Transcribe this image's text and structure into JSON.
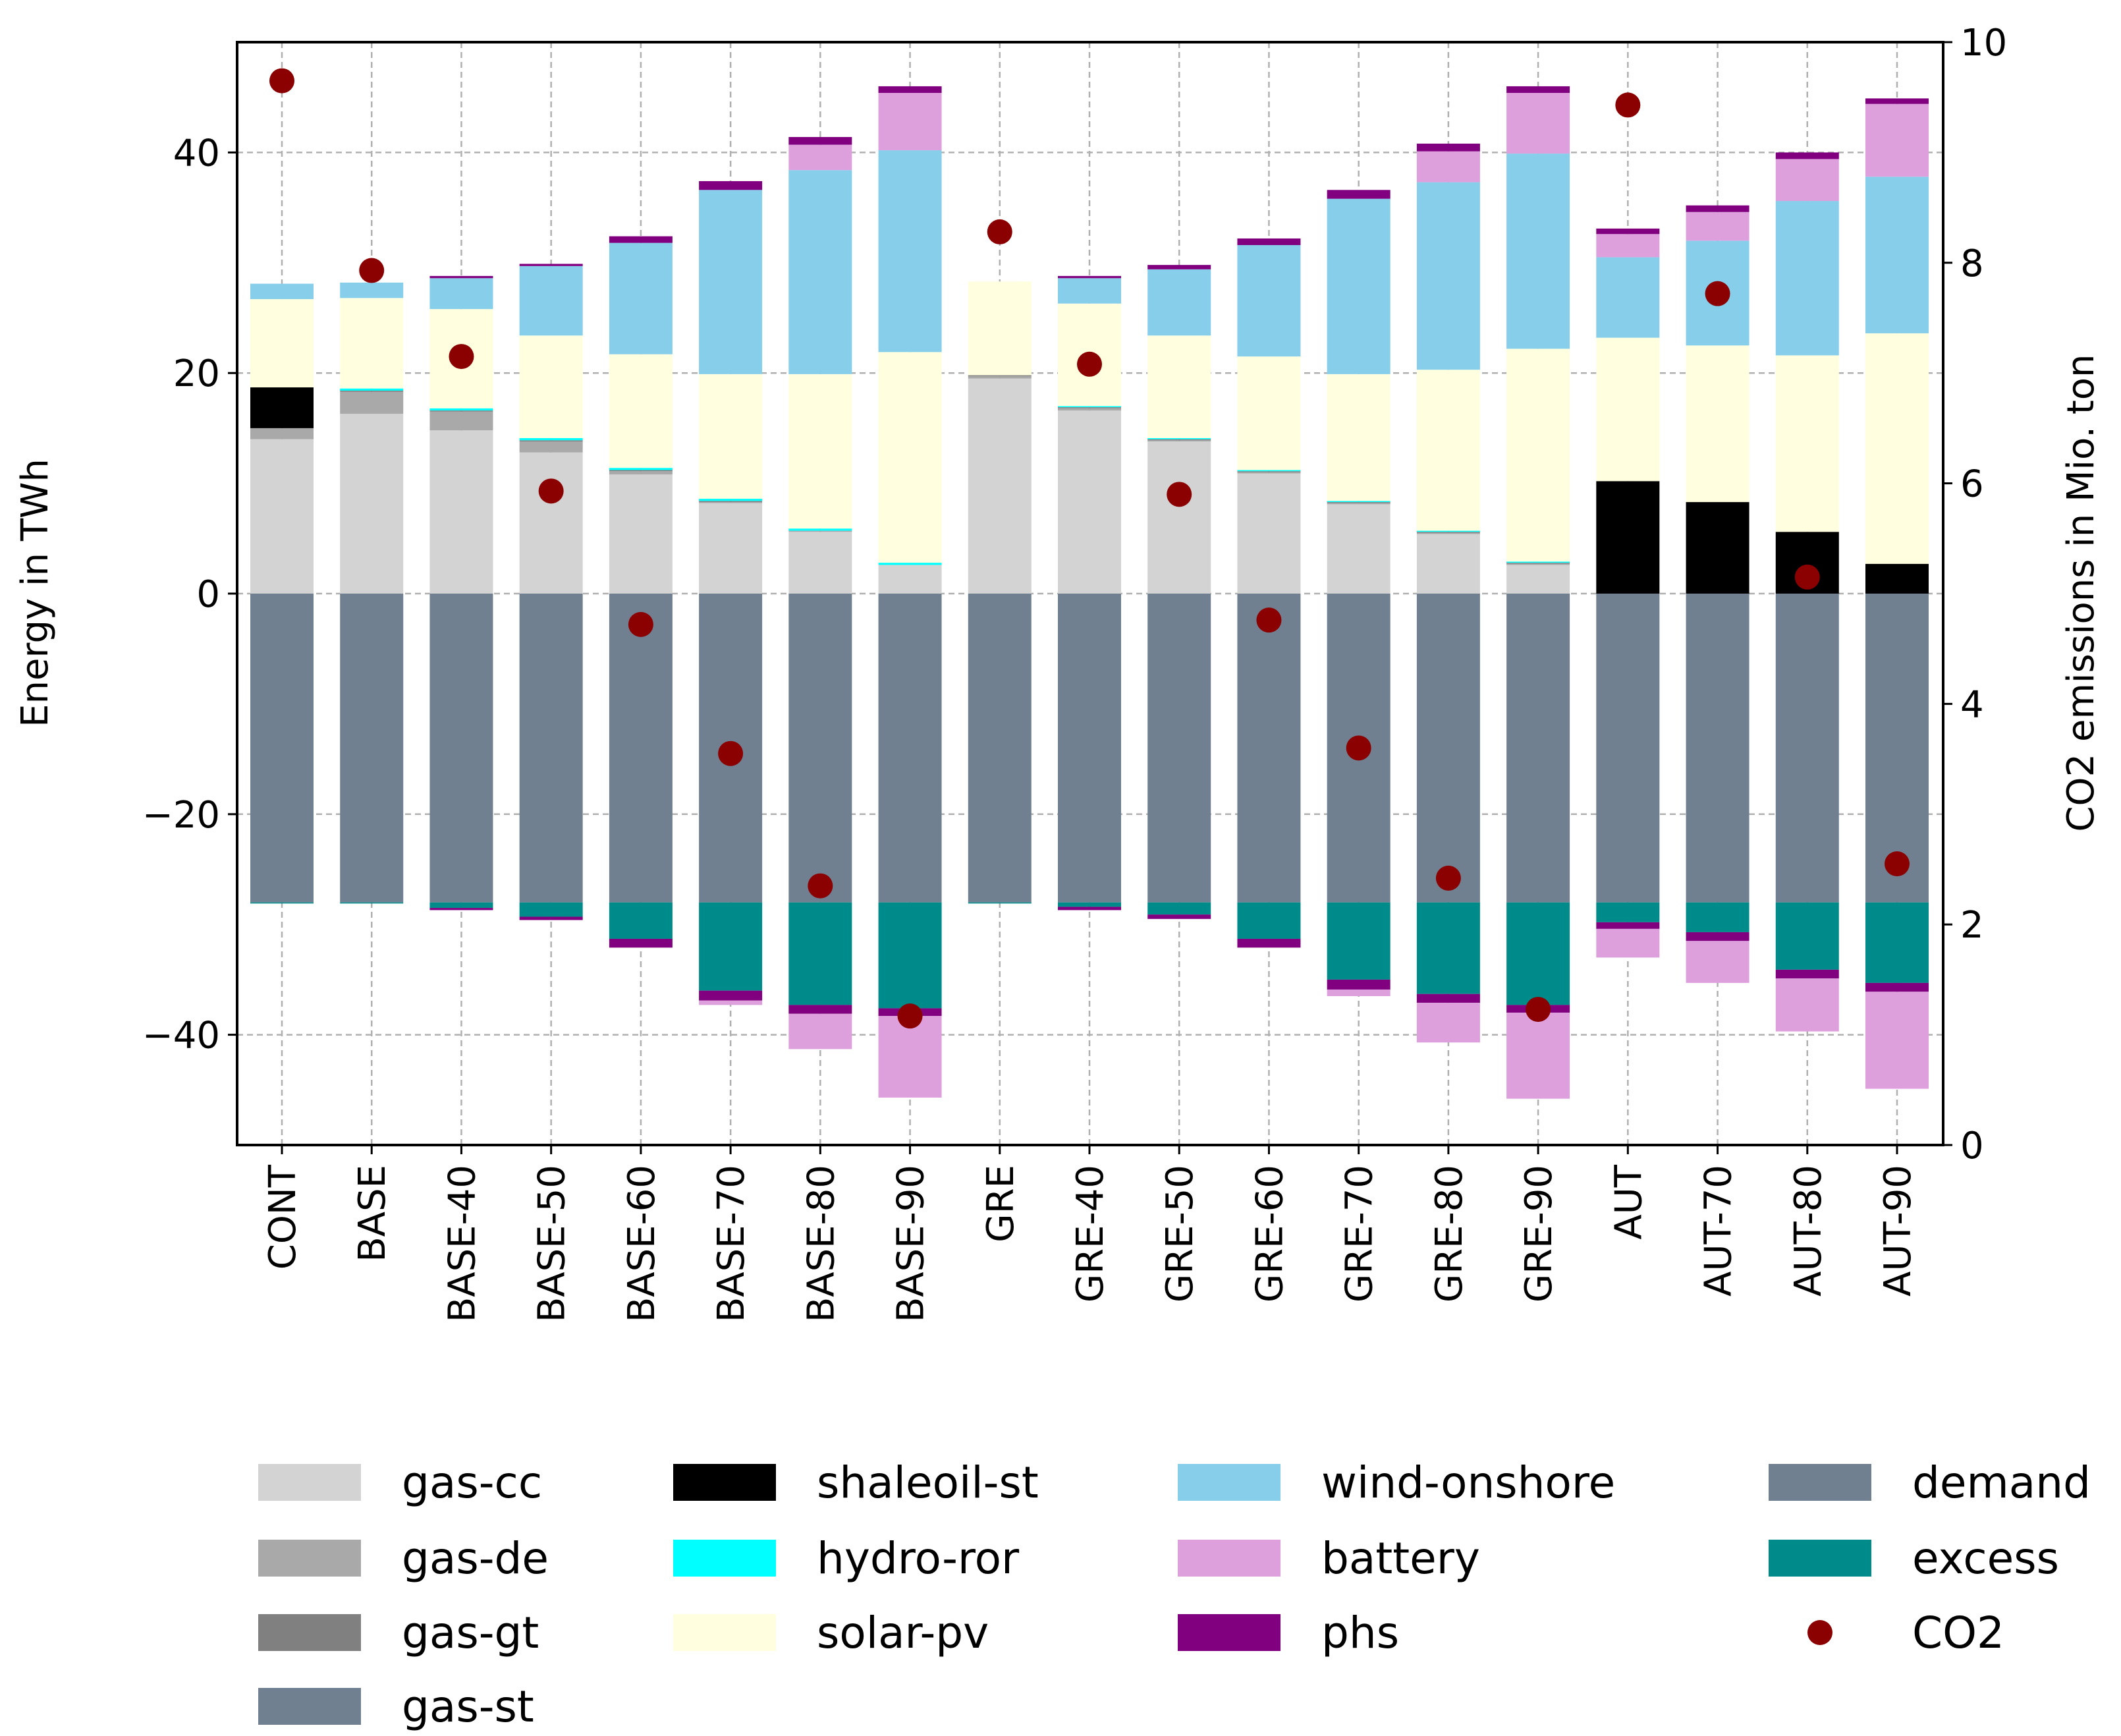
{
  "chart_data": {
    "type": "bar",
    "stacked": true,
    "title": "",
    "xlabel": "",
    "ylabel": "Energy in TWh",
    "ylabel_right": "CO2 emissions in Mio. ton",
    "ylim": [
      -50,
      50
    ],
    "ylim_right": [
      0,
      10
    ],
    "yticks": [
      -40,
      -20,
      0,
      20,
      40
    ],
    "yticks_right": [
      0,
      2,
      4,
      6,
      8,
      10
    ],
    "tick_labels_left": [
      "−40",
      "−20",
      "0",
      "20",
      "40"
    ],
    "tick_labels_right": [
      "0",
      "2",
      "4",
      "6",
      "8",
      "10"
    ],
    "grid": true,
    "legend_position": "below",
    "categories": [
      "CONT",
      "BASE",
      "BASE-40",
      "BASE-50",
      "BASE-60",
      "BASE-70",
      "BASE-80",
      "BASE-90",
      "GRE",
      "GRE-40",
      "GRE-50",
      "GRE-60",
      "GRE-70",
      "GRE-80",
      "GRE-90",
      "AUT",
      "AUT-70",
      "AUT-80",
      "AUT-90"
    ],
    "positive_series": [
      {
        "name": "gas-cc",
        "color": "#d3d3d3",
        "values": [
          14.0,
          16.3,
          14.8,
          12.8,
          10.8,
          8.2,
          5.6,
          2.6,
          19.5,
          16.6,
          13.8,
          10.9,
          8.1,
          5.4,
          2.6,
          0,
          0,
          0,
          0
        ]
      },
      {
        "name": "gas-de",
        "color": "#a9a9a9",
        "values": [
          1.0,
          2.0,
          1.7,
          1.0,
          0.3,
          0.1,
          0.1,
          0,
          0.2,
          0.2,
          0.1,
          0.1,
          0.1,
          0.1,
          0.1,
          0,
          0,
          0,
          0
        ]
      },
      {
        "name": "gas-gt",
        "color": "#808080",
        "values": [
          0,
          0.1,
          0.1,
          0.1,
          0.1,
          0.1,
          0,
          0,
          0.1,
          0.1,
          0.1,
          0.1,
          0.1,
          0.1,
          0.1,
          0,
          0,
          0,
          0
        ]
      },
      {
        "name": "gas-st",
        "color": "#708090",
        "values": [
          0,
          0,
          0,
          0,
          0,
          0,
          0,
          0,
          0,
          0,
          0,
          0,
          0,
          0,
          0,
          0,
          0,
          0,
          0
        ]
      },
      {
        "name": "shaleoil-st",
        "color": "#000000",
        "values": [
          3.7,
          0,
          0,
          0,
          0,
          0,
          0,
          0,
          0,
          0,
          0,
          0,
          0,
          0,
          0,
          10.2,
          8.3,
          5.6,
          2.7
        ]
      },
      {
        "name": "hydro-ror",
        "color": "#00ffff",
        "values": [
          0,
          0.2,
          0.2,
          0.2,
          0.2,
          0.2,
          0.2,
          0.2,
          0,
          0.1,
          0.1,
          0.1,
          0.1,
          0.1,
          0.1,
          0,
          0,
          0,
          0
        ]
      },
      {
        "name": "solar-pv",
        "color": "#ffffe0",
        "values": [
          8.0,
          8.2,
          9.0,
          9.3,
          10.3,
          11.3,
          14.0,
          19.1,
          8.5,
          9.3,
          9.3,
          10.3,
          11.5,
          14.6,
          19.3,
          13.0,
          14.2,
          16.0,
          20.9
        ]
      },
      {
        "name": "wind-onshore",
        "color": "#87ceeb",
        "values": [
          1.4,
          1.4,
          2.8,
          6.3,
          10.1,
          16.7,
          18.5,
          18.3,
          0,
          2.3,
          6.0,
          10.1,
          15.9,
          17.0,
          17.7,
          7.3,
          9.5,
          14.0,
          14.2
        ]
      },
      {
        "name": "battery",
        "color": "#dda0dd",
        "values": [
          0,
          0,
          0,
          0,
          0,
          0,
          2.3,
          5.2,
          0,
          0,
          0,
          0,
          0,
          2.8,
          5.5,
          2.1,
          2.6,
          3.8,
          6.6
        ]
      },
      {
        "name": "phs",
        "color": "#800080",
        "values": [
          0,
          0,
          0.2,
          0.2,
          0.6,
          0.8,
          0.7,
          0.6,
          0,
          0.2,
          0.4,
          0.6,
          0.8,
          0.7,
          0.6,
          0.5,
          0.6,
          0.6,
          0.5
        ]
      }
    ],
    "negative_series": [
      {
        "name": "demand",
        "color": "#708090",
        "values": [
          -28.0,
          -28.0,
          -28.0,
          -28.0,
          -28.0,
          -28.0,
          -28.0,
          -28.0,
          -28.0,
          -28.0,
          -28.0,
          -28.0,
          -28.0,
          -28.0,
          -28.0,
          -28.0,
          -28.0,
          -28.0,
          -28.0
        ]
      },
      {
        "name": "excess",
        "color": "#008b8b",
        "values": [
          -0.1,
          -0.1,
          -0.5,
          -1.3,
          -3.3,
          -8.0,
          -9.3,
          -9.6,
          -0.1,
          -0.4,
          -1.1,
          -3.3,
          -7.0,
          -8.3,
          -9.3,
          -1.8,
          -2.7,
          -6.1,
          -7.3
        ]
      },
      {
        "name": "phs",
        "color": "#800080",
        "values": [
          0,
          0,
          -0.2,
          -0.3,
          -0.8,
          -0.9,
          -0.8,
          -0.7,
          0,
          -0.3,
          -0.4,
          -0.8,
          -0.9,
          -0.8,
          -0.7,
          -0.6,
          -0.8,
          -0.8,
          -0.8
        ]
      },
      {
        "name": "battery",
        "color": "#dda0dd",
        "values": [
          0,
          0,
          0,
          0,
          0,
          -0.4,
          -3.2,
          -7.4,
          0,
          0,
          0,
          0,
          -0.6,
          -3.6,
          -7.8,
          -2.6,
          -3.8,
          -4.8,
          -8.8
        ]
      }
    ],
    "scatter_series": {
      "name": "CO2",
      "color": "#8b0000",
      "axis": "right",
      "values": [
        9.65,
        7.93,
        7.15,
        5.93,
        4.72,
        3.55,
        2.35,
        1.17,
        8.28,
        7.08,
        5.9,
        4.76,
        3.6,
        2.42,
        1.23,
        9.43,
        7.72,
        5.15,
        2.55
      ]
    },
    "legend": [
      [
        "gas-cc",
        "gas-de",
        "gas-gt",
        "gas-st"
      ],
      [
        "shaleoil-st",
        "hydro-ror",
        "solar-pv"
      ],
      [
        "wind-onshore",
        "battery",
        "phs"
      ],
      [
        "demand",
        "excess",
        "CO2"
      ]
    ],
    "legend_colors": {
      "gas-cc": "#d3d3d3",
      "gas-de": "#a9a9a9",
      "gas-gt": "#808080",
      "gas-st": "#708090",
      "shaleoil-st": "#000000",
      "hydro-ror": "#00ffff",
      "solar-pv": "#ffffe0",
      "wind-onshore": "#87ceeb",
      "battery": "#dda0dd",
      "phs": "#800080",
      "demand": "#708090",
      "excess": "#008b8b",
      "CO2": "#8b0000"
    }
  }
}
